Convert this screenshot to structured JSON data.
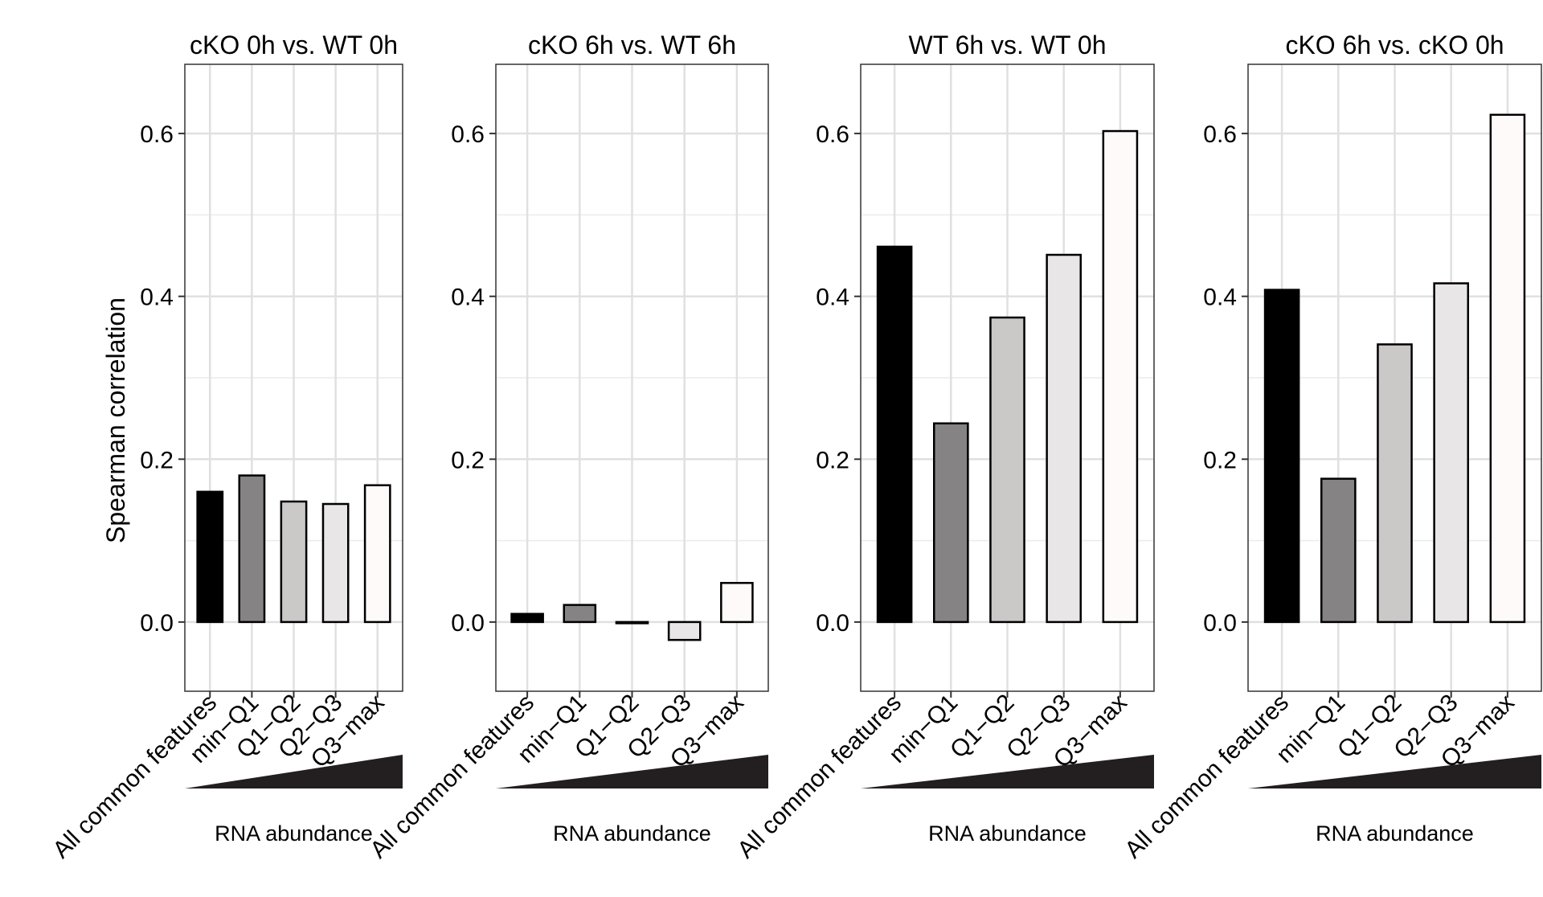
{
  "chart_data": {
    "type": "bar",
    "ylabel": "Spearman correlation",
    "xlabel": "RNA abundance",
    "ylim": [
      -0.085,
      0.685
    ],
    "yticks": [
      0.0,
      0.2,
      0.4,
      0.6
    ],
    "ytick_labels": [
      "0.0",
      "0.2",
      "0.4",
      "0.6"
    ],
    "grid": true,
    "categories": [
      "All common features",
      "min−Q1",
      "Q1−Q2",
      "Q2−Q3",
      "Q3−max"
    ],
    "bar_colors": [
      "#000000",
      "#858383",
      "#cbc8c8",
      "#e8e6e6",
      "#fffafa"
    ],
    "panels": [
      {
        "title": "cKO 0h vs. WT 0h",
        "values": [
          0.16,
          0.18,
          0.148,
          0.145,
          0.168
        ]
      },
      {
        "title": "cKO 6h vs. WT 6h",
        "values": [
          0.01,
          0.021,
          -0.001,
          -0.022,
          0.048
        ]
      },
      {
        "title": "WT 6h vs. WT 0h",
        "values": [
          0.461,
          0.244,
          0.374,
          0.451,
          0.603
        ]
      },
      {
        "title": "cKO 6h vs. cKO 0h",
        "values": [
          0.408,
          0.176,
          0.341,
          0.416,
          0.623
        ]
      }
    ]
  }
}
